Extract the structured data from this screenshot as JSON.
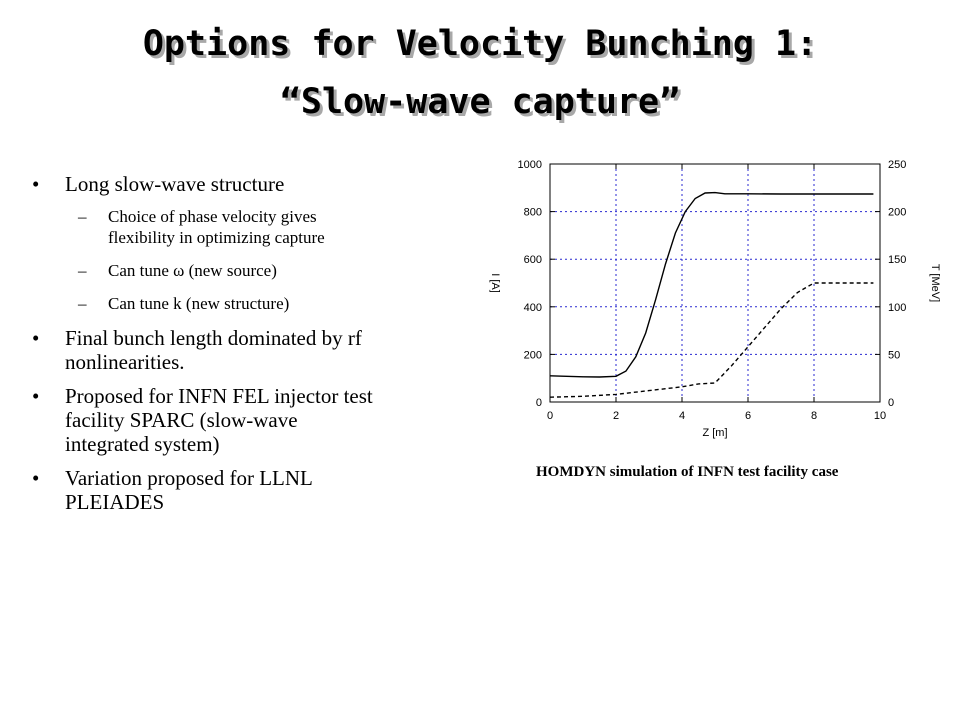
{
  "slide": {
    "title_line1": "Options for Velocity Bunching 1:",
    "title_line2": "“Slow-wave capture”",
    "bullets": [
      {
        "text_lines": [
          "Long slow-wave structure"
        ],
        "subs": [
          {
            "lines": [
              "Choice of phase velocity gives",
              "flexibility in optimizing capture"
            ]
          },
          {
            "lines": [
              "Can tune ω (new source)"
            ]
          },
          {
            "lines": [
              "Can tune k (new structure)"
            ]
          }
        ]
      },
      {
        "text_lines": [
          "Final bunch length dominated by rf",
          "nonlinearities."
        ],
        "subs": []
      },
      {
        "text_lines": [
          "Proposed for INFN FEL injector test",
          "facility SPARC (slow-wave",
          "integrated system)"
        ],
        "subs": []
      },
      {
        "text_lines": [
          "Variation proposed for LLNL",
          "PLEIADES"
        ],
        "subs": []
      }
    ],
    "caption": "HOMDYN simulation of INFN test facility case"
  },
  "chart_data": {
    "type": "line",
    "xlabel": "Z [m]",
    "ylabel": "I [A]",
    "y2label": "T [MeV]",
    "xlim": [
      0,
      10
    ],
    "ylim": [
      0,
      1000
    ],
    "y2lim": [
      0,
      250
    ],
    "xticks": [
      "0",
      "2",
      "4",
      "6",
      "8",
      "10"
    ],
    "yticks": [
      "0",
      "200",
      "400",
      "600",
      "800",
      "1000"
    ],
    "y2ticks": [
      "0",
      "50",
      "100",
      "150",
      "200",
      "250"
    ],
    "grid": true,
    "series": [
      {
        "axis": "left",
        "style": "solid",
        "x": [
          0,
          0.5,
          1,
          1.5,
          2,
          2.3,
          2.6,
          2.9,
          3.2,
          3.5,
          3.8,
          4.1,
          4.4,
          4.7,
          5,
          5.3,
          6,
          7,
          8,
          9,
          9.8
        ],
        "y": [
          110,
          108,
          106,
          105,
          108,
          130,
          190,
          290,
          430,
          580,
          710,
          800,
          855,
          878,
          880,
          875,
          875,
          874,
          874,
          874,
          874
        ]
      },
      {
        "axis": "right",
        "style": "dashed",
        "x": [
          0,
          1,
          2,
          3,
          4,
          4.5,
          5,
          5.5,
          6,
          6.5,
          7,
          7.5,
          8,
          9,
          9.8
        ],
        "y": [
          5,
          6,
          8,
          12,
          16,
          19,
          20,
          38,
          58,
          78,
          98,
          115,
          125,
          125,
          125
        ]
      }
    ]
  }
}
